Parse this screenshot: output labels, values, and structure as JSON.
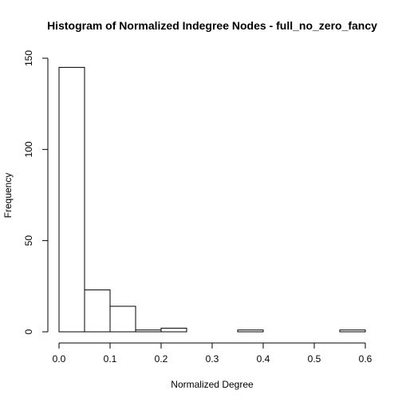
{
  "chart_data": {
    "type": "bar",
    "title": "Histogram of Normalized Indegree Nodes - full_no_zero_fancy",
    "xlabel": "Normalized Degree",
    "ylabel": "Frequency",
    "bin_edges": [
      0.0,
      0.05,
      0.1,
      0.15,
      0.2,
      0.25,
      0.3,
      0.35,
      0.4,
      0.45,
      0.5,
      0.55,
      0.6
    ],
    "values": [
      145,
      23,
      14,
      1,
      2,
      0,
      0,
      1,
      0,
      0,
      0,
      1
    ],
    "xlim": [
      0.0,
      0.6
    ],
    "ylim": [
      0,
      150
    ],
    "x_ticks": [
      0.0,
      0.1,
      0.2,
      0.3,
      0.4,
      0.5,
      0.6
    ],
    "x_tick_labels": [
      "0.0",
      "0.1",
      "0.2",
      "0.3",
      "0.4",
      "0.5",
      "0.6"
    ],
    "y_ticks": [
      0,
      50,
      100,
      150
    ],
    "y_tick_labels": [
      "0",
      "50",
      "100",
      "150"
    ],
    "grid": false,
    "legend": "none",
    "bar_fill": "#ffffff",
    "bar_stroke": "#000000"
  }
}
